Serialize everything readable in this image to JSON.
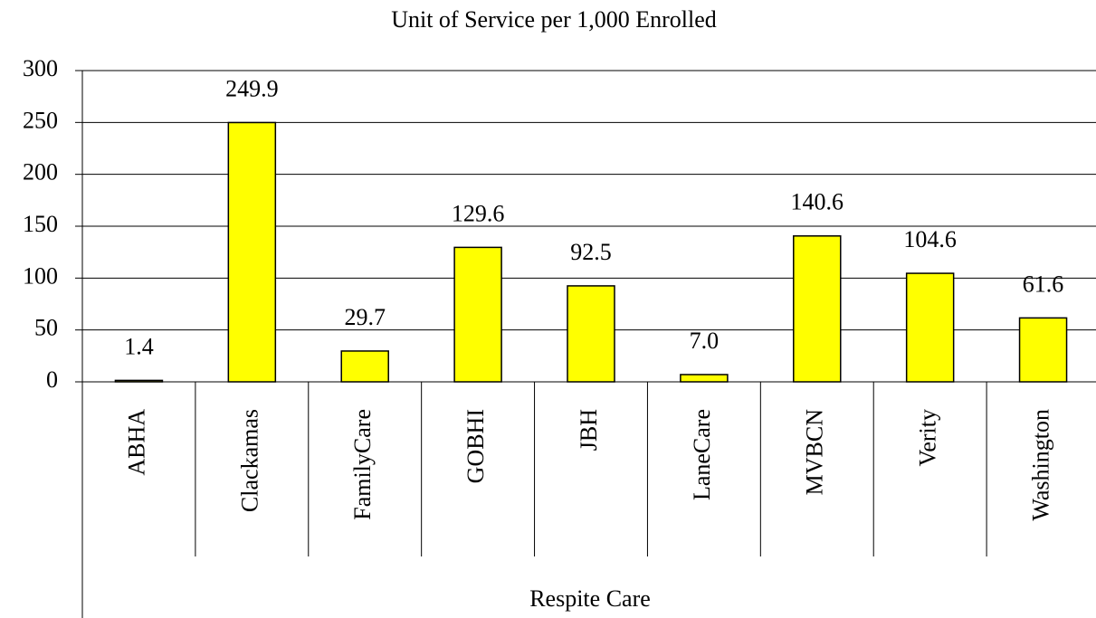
{
  "chart_data": {
    "type": "bar",
    "title": "Unit of Service per 1,000 Enrolled",
    "categories": [
      "ABHA",
      "Clackamas",
      "FamilyCare",
      "GOBHI",
      "JBH",
      "LaneCare",
      "MVBCN",
      "Verity",
      "Washington"
    ],
    "values": [
      1.4,
      249.9,
      29.7,
      129.6,
      92.5,
      7.0,
      140.6,
      104.6,
      61.6
    ],
    "value_labels": [
      "1.4",
      "249.9",
      "29.7",
      "129.6",
      "92.5",
      "7.0",
      "140.6",
      "104.6",
      "61.6"
    ],
    "group_label": "Respite Care",
    "color": "#ffff00",
    "ylim": [
      0,
      300
    ],
    "yticks": [
      0,
      50,
      100,
      150,
      200,
      250,
      300
    ],
    "grid": true
  }
}
